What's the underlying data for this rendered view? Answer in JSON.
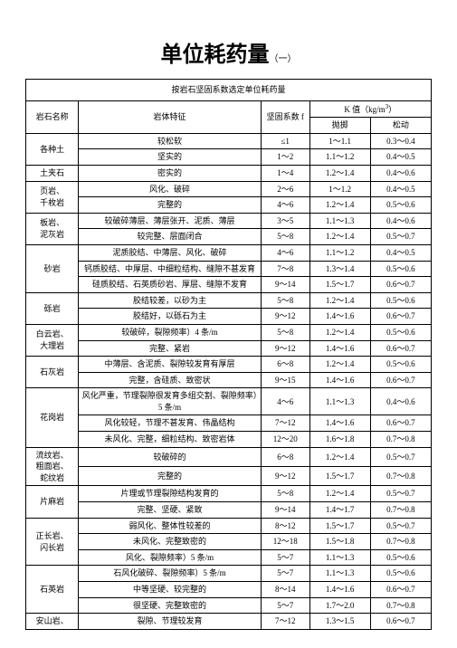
{
  "title_main": "单位耗药量",
  "title_sub": "（一）",
  "table_caption": "按岩石坚固系数选定单位耗药量",
  "headers": {
    "name": "岩石名称",
    "feature": "岩体特征",
    "coef": "坚固系数 f",
    "kval": "K 值（kg/m³）",
    "k1": "抛掷",
    "k2": "松动"
  },
  "rows": [
    {
      "name": "各种土",
      "name_rs": 1,
      "feat": [
        "较松软",
        "坚实的"
      ],
      "f": [
        "≤1",
        "1～2"
      ],
      "k1": [
        "1～1.1",
        "1.1～1.2"
      ],
      "k2": [
        "0.3～0.4",
        "0.4～0.5"
      ]
    },
    {
      "name": "土夹石",
      "name_rs": 1,
      "feat": [
        "密实的"
      ],
      "f": [
        "1～4"
      ],
      "k1": [
        "1.2～1.4"
      ],
      "k2": [
        "0.4～0.6"
      ]
    },
    {
      "name": "页岩、\n千枚岩",
      "name_rs": 1,
      "feat": [
        "风化、破碎",
        "完整的"
      ],
      "f": [
        "2～6",
        "4～6"
      ],
      "k1": [
        "1～1.2",
        "1.2～1.4"
      ],
      "k2": [
        "0.4～0.5",
        "0.5～0.6"
      ]
    },
    {
      "name": "板岩、\n泥灰岩",
      "name_rs": 1,
      "feat": [
        "较破碎薄层、薄层张开、泥质、薄层",
        "较完整、层面闭合"
      ],
      "f": [
        "3～5",
        "5～8"
      ],
      "k1": [
        "1.1～1.3",
        "1.2～1.4"
      ],
      "k2": [
        "0.4～0.6",
        "0.5～0.7"
      ]
    },
    {
      "name": "砂岩",
      "name_rs": 1,
      "feat": [
        "泥质胶结、中薄层、风化、破碎",
        "钙质胶结、中厚层、中细粒结构、缝隙不甚发育",
        "硅质胶结、石英质砂岩、厚层、缝隙不发育"
      ],
      "f": [
        "4～6",
        "7～8",
        "9～14"
      ],
      "k1": [
        "1.1～1.2",
        "1.3～1.4",
        "1.5～1.7"
      ],
      "k2": [
        "0.4～0.5",
        "0.5～0.6",
        "0.6～0.7"
      ]
    },
    {
      "name": "砾岩",
      "name_rs": 1,
      "feat": [
        "胶结较差，以砂为主",
        "胶结好，以砾石为主"
      ],
      "f": [
        "5～8",
        "9～12"
      ],
      "k1": [
        "1.2～1.4",
        "1.4～1.6"
      ],
      "k2": [
        "0.5～0.6",
        "0.6～0.7"
      ]
    },
    {
      "name": "白云岩、\n大理岩",
      "name_rs": 1,
      "feat": [
        "较破碎，裂隙频率）4 条/m",
        "完整、紧岩"
      ],
      "f": [
        "5～8",
        "9～12"
      ],
      "k1": [
        "1.2～1.4",
        "1.4～1.6"
      ],
      "k2": [
        "0.5～0.6",
        "0.6～0.7"
      ]
    },
    {
      "name": "石灰岩",
      "name_rs": 1,
      "feat": [
        "中薄层、含泥质、裂隙较发育有厚层",
        "完整，含硅质、致密状"
      ],
      "f": [
        "6～8",
        "9～15"
      ],
      "k1": [
        "1.2～1.4",
        "1.4～1.6"
      ],
      "k2": [
        "0.5～0.6",
        "0.6～0.7"
      ]
    },
    {
      "name": "花岗岩",
      "name_rs": 1,
      "feat": [
        "风化严重，节理裂隙很发育多组交割、裂隙频率）5 条/m",
        "风化较轻，节理不甚发育、伟晶结构",
        "未风化、完整，细粒结构、致密岩体"
      ],
      "f": [
        "4～6",
        "7～12",
        "12～20"
      ],
      "k1": [
        "1.1～1.3",
        "1.4～1.6",
        "1.6～1.8"
      ],
      "k2": [
        "0.4～0.6",
        "0.6～0.7",
        "0.7～0.8"
      ]
    },
    {
      "name": "流纹岩、\n粗面岩、\n蛇纹岩",
      "name_rs": 1,
      "feat": [
        "较破碎的",
        "完整的"
      ],
      "f": [
        "6～8",
        "9～12"
      ],
      "k1": [
        "1.2～1.4",
        "1.5～1.7"
      ],
      "k2": [
        "0.5～0.7",
        "0.7～0.8"
      ]
    },
    {
      "name": "片麻岩",
      "name_rs": 1,
      "feat": [
        "片理或节理裂隙结构发育的",
        "完整、坚硬、紧致"
      ],
      "f": [
        "5～8",
        "9～14"
      ],
      "k1": [
        "1.2～1.4",
        "1.4～1.7"
      ],
      "k2": [
        "0.5～0.7",
        "0.7～0.8"
      ]
    },
    {
      "name": "正长岩、\n闪长岩",
      "name_rs": 1,
      "feat": [
        "弱风化、整体性较差的",
        "未风化、完整致密的",
        "风化、裂隙频率）5 条/m"
      ],
      "f": [
        "8～12",
        "12～18",
        "5～7"
      ],
      "k1": [
        "1.5～1.7",
        "1.5～1.8",
        "1.1～1.3"
      ],
      "k2": [
        "0.5～0.7",
        "0.7～0.8",
        "0.5～0.6"
      ]
    },
    {
      "name": "石英岩",
      "name_rs": 1,
      "feat": [
        "石风化破碎、裂隙频率）5 条/m",
        "中等坚硬、较完整的",
        "很坚硬、完整致密的"
      ],
      "f": [
        "5～7",
        "8～14",
        "5～7"
      ],
      "k1": [
        "1.1～1.3",
        "1.4～1.6",
        "1.7～2.0"
      ],
      "k2": [
        "0.5～0.6",
        "0.6～0.7",
        "0.7～0.8"
      ]
    },
    {
      "name": "安山岩、",
      "name_rs": 1,
      "feat": [
        "裂隙、节理较发育"
      ],
      "f": [
        "7～12"
      ],
      "k1": [
        "1.3～1.5"
      ],
      "k2": [
        "0.6～0.7"
      ]
    }
  ]
}
